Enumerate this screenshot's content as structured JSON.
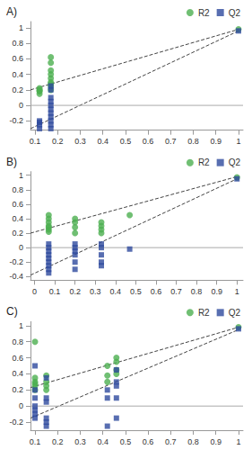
{
  "chart_data": [
    {
      "type": "scatter",
      "title": "A)",
      "xlim": [
        0.08,
        1.02
      ],
      "xticks": [
        0.1,
        0.2,
        0.3,
        0.4,
        0.5,
        0.6,
        0.7,
        0.8,
        0.9,
        1
      ],
      "ylim": [
        -0.32,
        1.08
      ],
      "yticks": [
        -0.2,
        0,
        0.2,
        0.4,
        0.6,
        0.8,
        1
      ],
      "grid": false,
      "legend": "upper right",
      "series": [
        {
          "name": "R2",
          "type": "scatter",
          "color": "#4caf50",
          "marker": "circle",
          "x": [
            0.12,
            0.12,
            0.12,
            0.12,
            0.12,
            0.17,
            0.17,
            0.17,
            0.17,
            0.17,
            0.17,
            0.17,
            0.17,
            0.17,
            1
          ],
          "values": [
            0.15,
            0.18,
            0.2,
            0.22,
            0.19,
            0.2,
            0.25,
            0.28,
            0.3,
            0.35,
            0.4,
            0.45,
            0.55,
            0.62,
            0.98
          ]
        },
        {
          "name": "Q2",
          "type": "scatter",
          "color": "#2e4a9e",
          "marker": "rect",
          "x": [
            0.12,
            0.12,
            0.12,
            0.12,
            0.17,
            0.17,
            0.17,
            0.17,
            0.17,
            0.17,
            0.17,
            0.17,
            0.17,
            0.17,
            0.17,
            1
          ],
          "values": [
            -0.2,
            -0.22,
            -0.25,
            -0.3,
            0.25,
            0.2,
            0.1,
            0.05,
            0,
            -0.05,
            -0.1,
            -0.15,
            -0.2,
            -0.25,
            -0.3,
            0.96
          ]
        },
        {
          "type": "line",
          "line_style": "dashed",
          "color": "#444444",
          "x": [
            0.08,
            1
          ],
          "values": [
            0.2,
            0.98
          ]
        },
        {
          "type": "line",
          "line_style": "dashed",
          "color": "#444444",
          "x": [
            0.08,
            1
          ],
          "values": [
            -0.3,
            0.96
          ]
        },
        {
          "type": "line",
          "line_style": "solid",
          "color": "#aaaaaa",
          "x": [
            0.08,
            1.02
          ],
          "values": [
            0,
            0
          ]
        }
      ]
    },
    {
      "type": "scatter",
      "title": "B)",
      "xlim": [
        -0.02,
        1.03
      ],
      "xticks": [
        0,
        0.1,
        0.2,
        0.3,
        0.4,
        0.5,
        0.6,
        0.7,
        0.8,
        0.9,
        1
      ],
      "ylim": [
        -0.45,
        1.05
      ],
      "yticks": [
        -0.4,
        -0.2,
        0,
        0.2,
        0.4,
        0.6,
        0.8,
        1
      ],
      "grid": false,
      "legend": "upper right",
      "series": [
        {
          "name": "R2",
          "type": "scatter",
          "color": "#4caf50",
          "marker": "circle",
          "x": [
            0.07,
            0.07,
            0.07,
            0.07,
            0.07,
            0.07,
            0.07,
            0.2,
            0.2,
            0.2,
            0.2,
            0.33,
            0.33,
            0.33,
            0.33,
            0.47,
            1
          ],
          "values": [
            0.22,
            0.25,
            0.28,
            0.3,
            0.35,
            0.4,
            0.45,
            0.2,
            0.28,
            0.35,
            0.4,
            0.2,
            0.25,
            0.3,
            0.35,
            0.45,
            0.97
          ]
        },
        {
          "name": "Q2",
          "type": "scatter",
          "color": "#2e4a9e",
          "marker": "rect",
          "x": [
            0.07,
            0.07,
            0.07,
            0.07,
            0.07,
            0.07,
            0.07,
            0.07,
            0.07,
            0.2,
            0.2,
            0.2,
            0.2,
            0.2,
            0.2,
            0.33,
            0.33,
            0.33,
            0.33,
            0.33,
            0.47,
            1
          ],
          "values": [
            0.05,
            0,
            -0.05,
            -0.1,
            -0.15,
            -0.2,
            -0.25,
            -0.3,
            -0.35,
            0.05,
            0,
            -0.05,
            -0.1,
            -0.2,
            -0.3,
            0.05,
            0,
            -0.1,
            -0.2,
            -0.25,
            -0.02,
            0.95
          ]
        },
        {
          "type": "line",
          "line_style": "dashed",
          "color": "#444444",
          "x": [
            -0.02,
            1
          ],
          "values": [
            0.2,
            0.98
          ]
        },
        {
          "type": "line",
          "line_style": "dashed",
          "color": "#444444",
          "x": [
            -0.02,
            1
          ],
          "values": [
            -0.38,
            0.95
          ]
        },
        {
          "type": "line",
          "line_style": "solid",
          "color": "#aaaaaa",
          "x": [
            -0.02,
            1.03
          ],
          "values": [
            0,
            0
          ]
        }
      ]
    },
    {
      "type": "scatter",
      "title": "C)",
      "xlim": [
        0.08,
        1.02
      ],
      "xticks": [
        0.1,
        0.2,
        0.3,
        0.4,
        0.5,
        0.6,
        0.7,
        0.8,
        0.9,
        1
      ],
      "ylim": [
        -0.3,
        1.05
      ],
      "yticks": [
        -0.2,
        0,
        0.2,
        0.4,
        0.6,
        0.8,
        1
      ],
      "grid": false,
      "legend": "upper right",
      "series": [
        {
          "name": "R2",
          "type": "scatter",
          "color": "#4caf50",
          "marker": "circle",
          "x": [
            0.1,
            0.1,
            0.1,
            0.1,
            0.1,
            0.1,
            0.15,
            0.15,
            0.15,
            0.15,
            0.42,
            0.42,
            0.42,
            0.46,
            0.46,
            0.46,
            0.46,
            1
          ],
          "values": [
            0.8,
            0.35,
            0.3,
            0.28,
            0.25,
            0.2,
            0.38,
            0.3,
            0.25,
            0.2,
            0.5,
            0.38,
            0.3,
            0.6,
            0.55,
            0.45,
            0.4,
            0.98
          ]
        },
        {
          "name": "Q2",
          "type": "scatter",
          "color": "#2e4a9e",
          "marker": "rect",
          "x": [
            0.1,
            0.1,
            0.1,
            0.1,
            0.1,
            0.1,
            0.1,
            0.15,
            0.15,
            0.15,
            0.15,
            0.15,
            0.15,
            0.42,
            0.42,
            0.42,
            0.46,
            0.46,
            0.46,
            0.46,
            0.46,
            1
          ],
          "values": [
            0.5,
            0.2,
            0.1,
            0,
            -0.05,
            -0.1,
            -0.15,
            0.35,
            0.1,
            0.05,
            -0.15,
            -0.2,
            -0.25,
            0.2,
            0.1,
            -0.25,
            0.45,
            0.3,
            0.25,
            0.1,
            -0.15,
            0.96
          ]
        },
        {
          "type": "line",
          "line_style": "dashed",
          "color": "#444444",
          "x": [
            0.08,
            1
          ],
          "values": [
            0.23,
            0.98
          ]
        },
        {
          "type": "line",
          "line_style": "dashed",
          "color": "#444444",
          "x": [
            0.08,
            1
          ],
          "values": [
            -0.15,
            0.95
          ]
        },
        {
          "type": "line",
          "line_style": "solid",
          "color": "#aaaaaa",
          "x": [
            0.08,
            1.02
          ],
          "values": [
            0,
            0
          ]
        }
      ]
    }
  ]
}
